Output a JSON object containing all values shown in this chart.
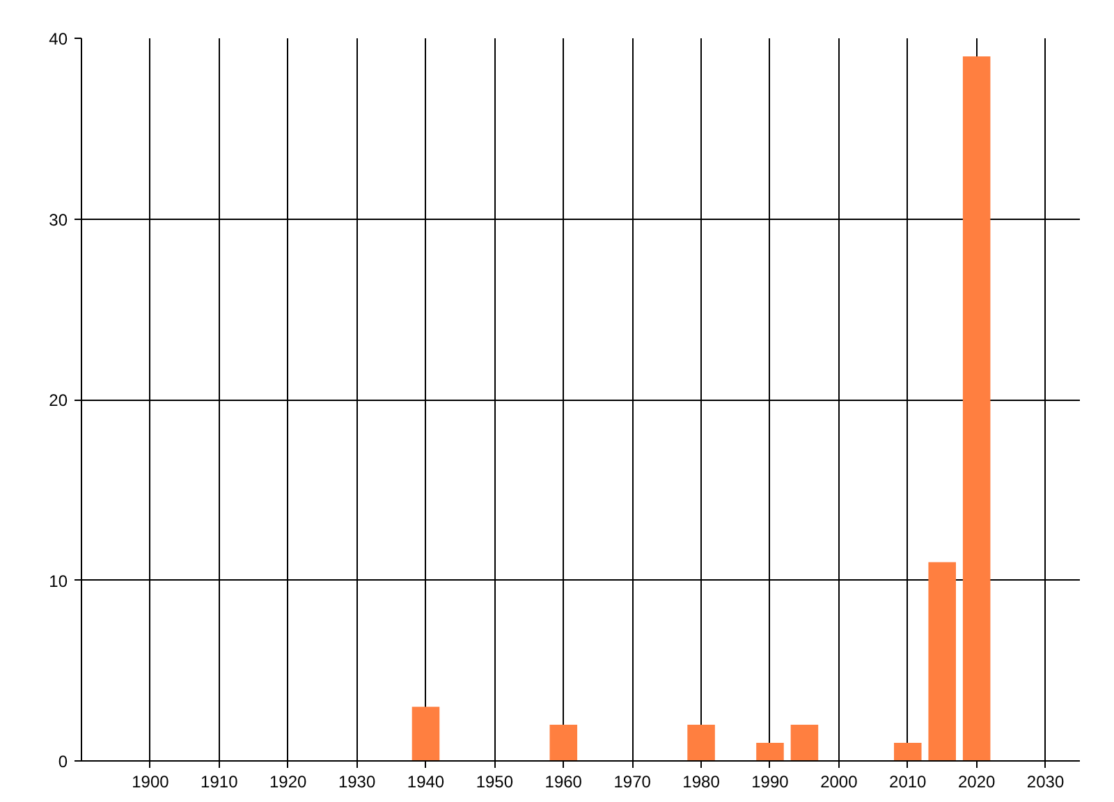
{
  "chart_data": {
    "type": "bar",
    "x": [
      1940,
      1960,
      1980,
      1990,
      1995,
      2010,
      2015,
      2020
    ],
    "values": [
      3,
      2,
      2,
      1,
      2,
      1,
      11,
      39
    ],
    "color": "#ff7f40",
    "xlim": [
      1890,
      2035
    ],
    "xticks": [
      1900,
      1910,
      1920,
      1930,
      1940,
      1950,
      1960,
      1970,
      1980,
      1990,
      2000,
      2010,
      2020,
      2030
    ],
    "ylim": [
      0,
      40
    ],
    "yticks": [
      0,
      10,
      20,
      30,
      40
    ],
    "grid": true
  }
}
